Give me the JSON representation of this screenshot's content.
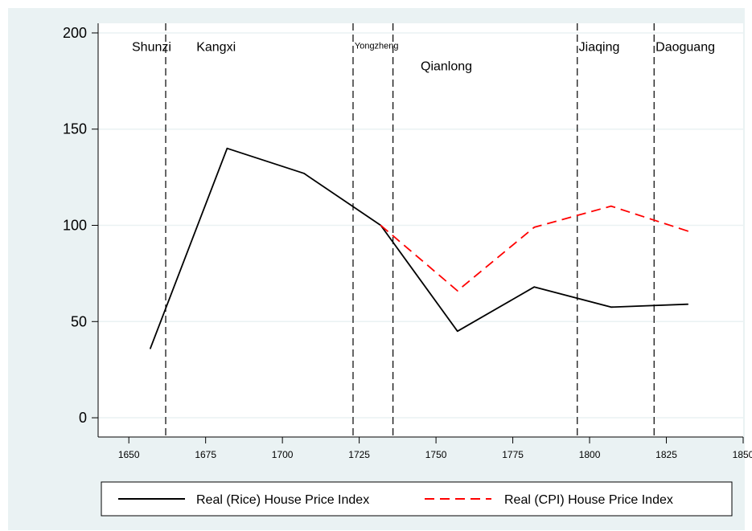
{
  "chart_data": {
    "type": "line",
    "xlim": [
      1640,
      1850
    ],
    "ylim": [
      -10,
      205
    ],
    "x_ticks": [
      1650,
      1675,
      1700,
      1725,
      1750,
      1775,
      1800,
      1825,
      1850
    ],
    "y_ticks": [
      0,
      50,
      100,
      150,
      200
    ],
    "grid": "horizontal",
    "legend_position": "bottom",
    "series": [
      {
        "name": "Real (Rice) House Price Index",
        "color": "#000000",
        "dash": "solid",
        "points": [
          [
            1657,
            36
          ],
          [
            1682,
            140
          ],
          [
            1707,
            127
          ],
          [
            1732,
            100
          ],
          [
            1757,
            45
          ],
          [
            1782,
            68
          ],
          [
            1807,
            57.5
          ],
          [
            1832,
            59
          ]
        ]
      },
      {
        "name": "Real (CPI) House Price Index",
        "color": "#ff0000",
        "dash": "dashed",
        "points": [
          [
            1732,
            100
          ],
          [
            1757,
            66
          ],
          [
            1782,
            99
          ],
          [
            1807,
            110
          ],
          [
            1832,
            97
          ]
        ]
      }
    ],
    "reign_lines": [
      1662,
      1723,
      1736,
      1796,
      1821
    ],
    "reign_labels": [
      {
        "text": "Shunzi",
        "x": 1651,
        "y": 193,
        "size": "normal"
      },
      {
        "text": "Kangxi",
        "x": 1672,
        "y": 193,
        "size": "normal"
      },
      {
        "text": "Yongzheng",
        "x": 1723.5,
        "y": 193.5,
        "size": "small"
      },
      {
        "text": "Qianlong",
        "x": 1745,
        "y": 183,
        "size": "normal"
      },
      {
        "text": "Jiaqing",
        "x": 1796.5,
        "y": 193,
        "size": "normal"
      },
      {
        "text": "Daoguang",
        "x": 1821.5,
        "y": 193,
        "size": "normal"
      }
    ]
  }
}
